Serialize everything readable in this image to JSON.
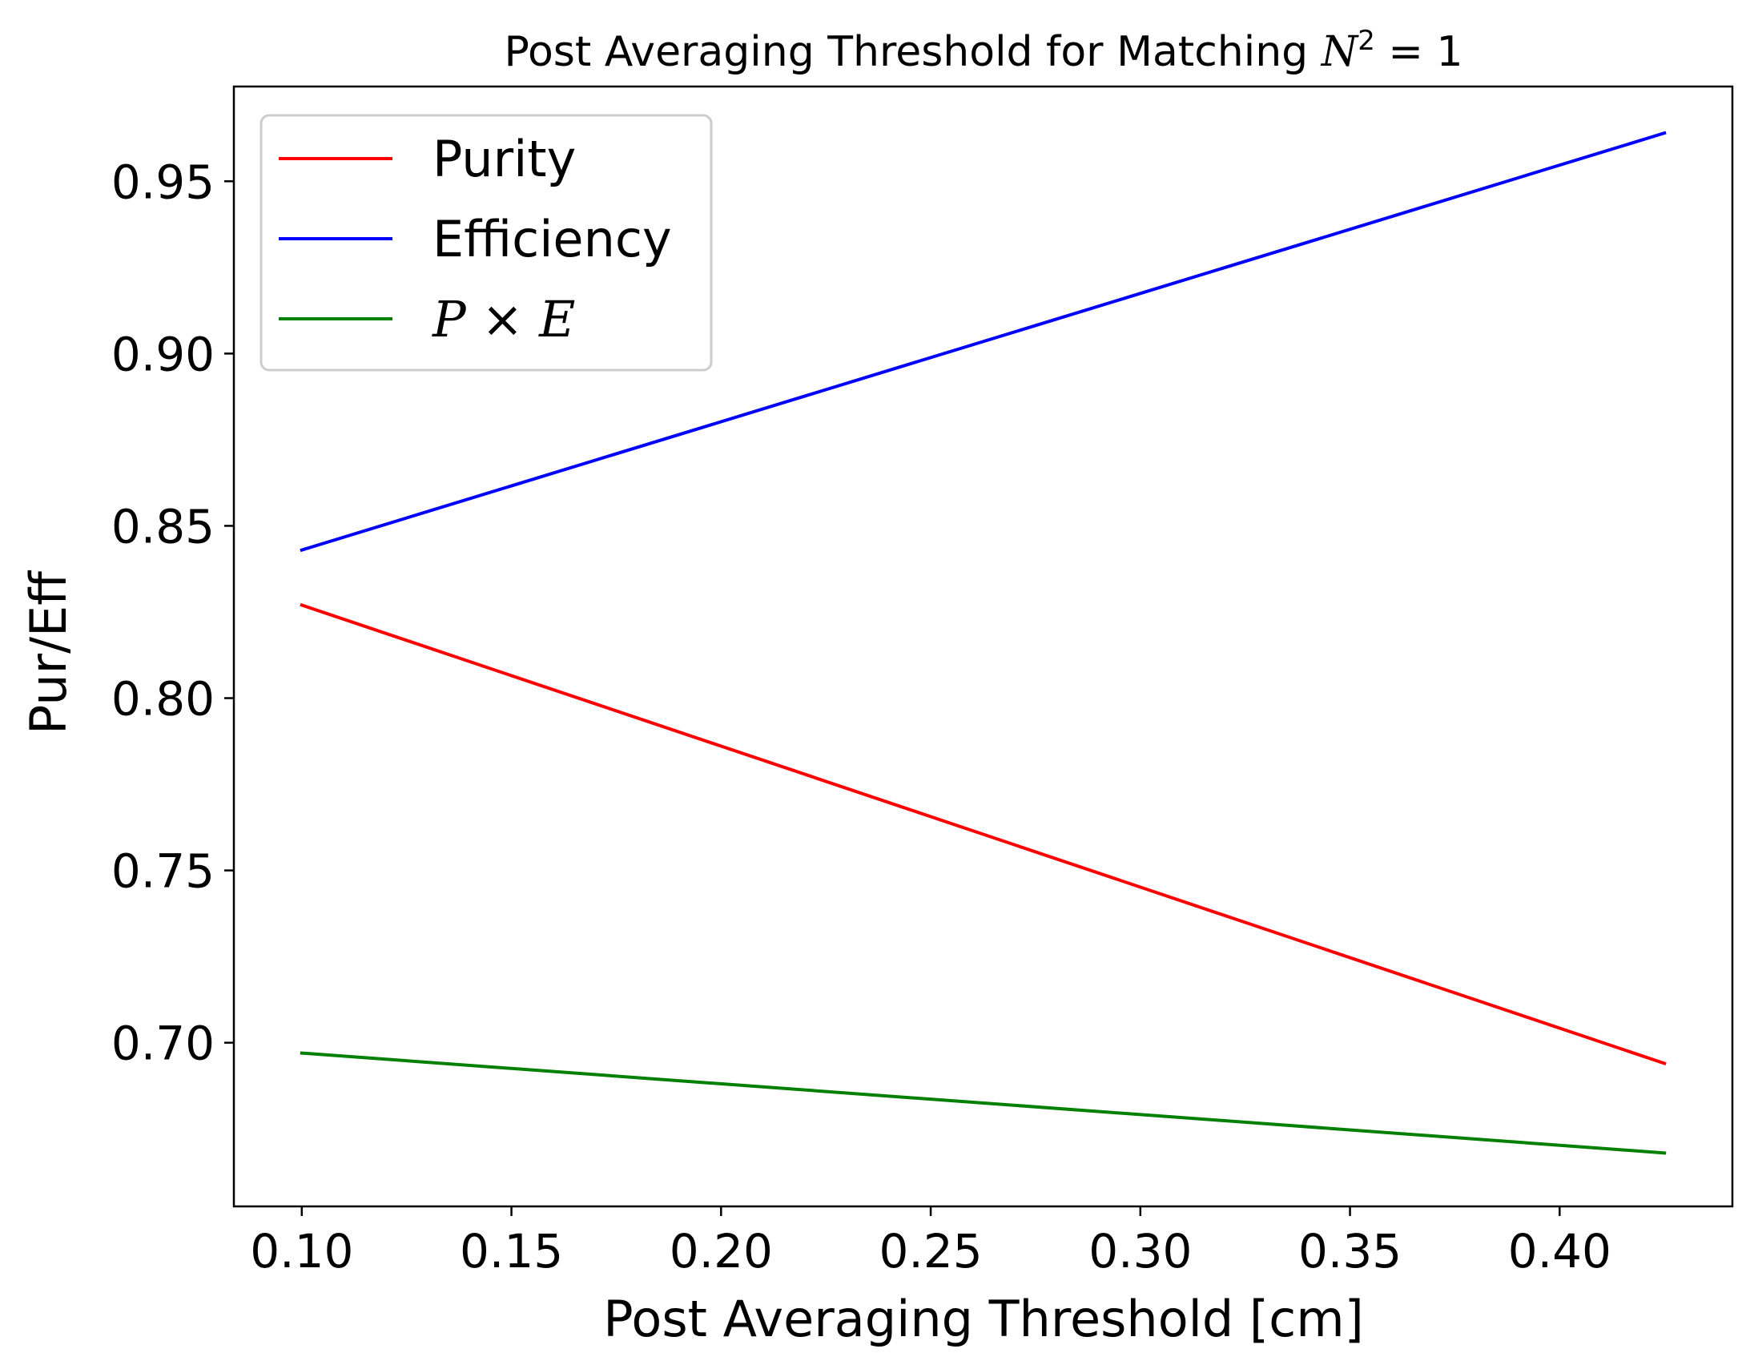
{
  "chart_data": {
    "type": "line",
    "title_prefix": "Post Averaging Threshold for Matching ",
    "title_math": {
      "base": "N",
      "sup": "2",
      "rest": " = 1"
    },
    "xlabel": "Post Averaging Threshold [cm]",
    "ylabel": "Pur/Eff",
    "xlim": [
      0.0838,
      0.4412
    ],
    "ylim": [
      0.6525,
      0.9775
    ],
    "xticks": [
      0.1,
      0.15,
      0.2,
      0.25,
      0.3,
      0.35,
      0.4
    ],
    "xtick_labels": [
      "0.10",
      "0.15",
      "0.20",
      "0.25",
      "0.30",
      "0.35",
      "0.40"
    ],
    "yticks": [
      0.7,
      0.75,
      0.8,
      0.85,
      0.9,
      0.95
    ],
    "ytick_labels": [
      "0.70",
      "0.75",
      "0.80",
      "0.85",
      "0.90",
      "0.95"
    ],
    "grid": false,
    "legend_position": "top-left",
    "series": [
      {
        "name": "Purity",
        "color": "#ff0000",
        "x": [
          0.1,
          0.425
        ],
        "y": [
          0.827,
          0.694
        ]
      },
      {
        "name": "Efficiency",
        "color": "#0000ff",
        "x": [
          0.1,
          0.425
        ],
        "y": [
          0.843,
          0.964
        ]
      },
      {
        "name": "P × E",
        "name_math": {
          "a": "P",
          "op": " × ",
          "b": "E"
        },
        "color": "#008000",
        "x": [
          0.1,
          0.425
        ],
        "y": [
          0.697,
          0.668
        ]
      }
    ]
  }
}
